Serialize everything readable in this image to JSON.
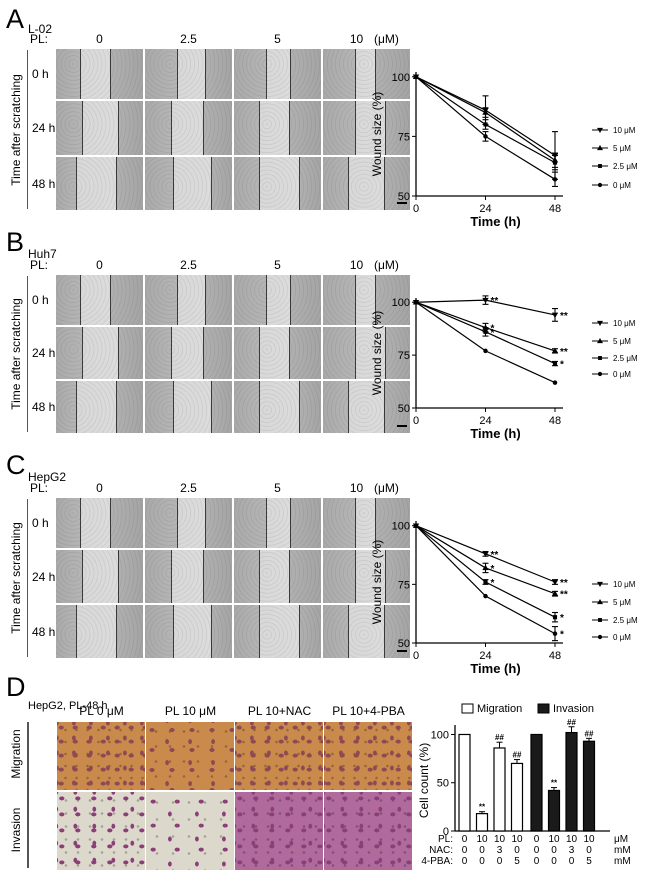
{
  "panels": [
    {
      "letter": "A",
      "cell": "L-02",
      "pl_label": "PL:",
      "unit": "(μM)",
      "concentrations": [
        "0",
        "2.5",
        "5",
        "10"
      ],
      "times": [
        "0 h",
        "24 h",
        "48 h"
      ],
      "side_label": "Time after scratching",
      "has_scale_bar": true
    },
    {
      "letter": "B",
      "cell": "Huh7",
      "pl_label": "PL:",
      "unit": "(μM)",
      "concentrations": [
        "0",
        "2.5",
        "5",
        "10"
      ],
      "times": [
        "0 h",
        "24 h",
        "48 h"
      ],
      "side_label": "Time after scratching",
      "has_scale_bar": true
    },
    {
      "letter": "C",
      "cell": "HepG2",
      "pl_label": "PL:",
      "unit": "(μM)",
      "concentrations": [
        "0",
        "2.5",
        "5",
        "10"
      ],
      "times": [
        "0 h",
        "24 h",
        "48 h"
      ],
      "side_label": "Time after scratching",
      "has_scale_bar": true
    }
  ],
  "panel_d": {
    "letter": "D",
    "title": "HepG2, PL-48 h",
    "columns": [
      "PL 0 μM",
      "PL 10 μM",
      "PL 10+NAC",
      "PL 10+4-PBA"
    ],
    "rows": [
      "Migration",
      "Invasion"
    ],
    "colors": {
      "migration_bg": "#c98a4c",
      "migration_cell": "#8e4a52",
      "invasion_bg": "#dcd9cc",
      "invasion_cell": "#8a3f78",
      "nac_invasion_bg": "#b06b9c"
    }
  },
  "chart_data": [
    {
      "type": "line",
      "panel": "A",
      "xlabel": "Time (h)",
      "ylabel": "Wound size (%)",
      "x": [
        0,
        24,
        48
      ],
      "xticks": [
        "0",
        "24",
        "48"
      ],
      "yticks": [
        "50",
        "75",
        "100"
      ],
      "ylim": [
        50,
        102
      ],
      "xlim": [
        0,
        48
      ],
      "legend_position": "right",
      "series": [
        {
          "name": "10 μM",
          "marker": "triangle-down",
          "values": [
            100,
            86,
            67
          ],
          "errors": [
            0,
            6,
            10
          ],
          "sig": [
            "",
            "",
            ""
          ]
        },
        {
          "name": "5 μM",
          "marker": "triangle-up",
          "values": [
            100,
            85,
            65
          ],
          "errors": [
            0,
            2,
            3
          ],
          "sig": [
            "",
            "",
            ""
          ]
        },
        {
          "name": "2.5 μM",
          "marker": "square",
          "values": [
            100,
            80,
            64
          ],
          "errors": [
            0,
            2,
            3
          ],
          "sig": [
            "",
            "",
            ""
          ]
        },
        {
          "name": "0 μM",
          "marker": "circle",
          "values": [
            100,
            75,
            57
          ],
          "errors": [
            0,
            2,
            3
          ],
          "sig": [
            "",
            "",
            ""
          ]
        }
      ]
    },
    {
      "type": "line",
      "panel": "B",
      "xlabel": "Time (h)",
      "ylabel": "Wound size (%)",
      "x": [
        0,
        24,
        48
      ],
      "xticks": [
        "0",
        "24",
        "48"
      ],
      "yticks": [
        "50",
        "75",
        "100"
      ],
      "ylim": [
        50,
        102
      ],
      "xlim": [
        0,
        48
      ],
      "legend_position": "right",
      "series": [
        {
          "name": "10 μM",
          "marker": "triangle-down",
          "values": [
            100,
            101,
            94
          ],
          "errors": [
            0,
            2,
            3
          ],
          "sig": [
            "",
            "**",
            "**"
          ]
        },
        {
          "name": "5 μM",
          "marker": "triangle-up",
          "values": [
            100,
            88,
            77
          ],
          "errors": [
            0,
            2,
            1
          ],
          "sig": [
            "",
            "*",
            "**"
          ]
        },
        {
          "name": "2.5 μM",
          "marker": "square",
          "values": [
            100,
            86,
            71
          ],
          "errors": [
            0,
            2,
            1
          ],
          "sig": [
            "",
            "*",
            "*"
          ]
        },
        {
          "name": "0 μM",
          "marker": "circle",
          "values": [
            100,
            77,
            62
          ],
          "errors": [
            0,
            0,
            0
          ],
          "sig": [
            "",
            "",
            ""
          ]
        }
      ]
    },
    {
      "type": "line",
      "panel": "C",
      "xlabel": "Time (h)",
      "ylabel": "Wound size (%)",
      "x": [
        0,
        24,
        48
      ],
      "xticks": [
        "0",
        "24",
        "48"
      ],
      "yticks": [
        "50",
        "75",
        "100"
      ],
      "ylim": [
        50,
        102
      ],
      "xlim": [
        0,
        48
      ],
      "legend_position": "right",
      "series": [
        {
          "name": "10 μM",
          "marker": "triangle-down",
          "values": [
            100,
            88,
            76
          ],
          "errors": [
            0,
            1,
            1
          ],
          "sig": [
            "",
            "**",
            "**"
          ]
        },
        {
          "name": "5 μM",
          "marker": "triangle-up",
          "values": [
            100,
            82,
            71
          ],
          "errors": [
            0,
            2,
            1
          ],
          "sig": [
            "",
            "*",
            "**"
          ]
        },
        {
          "name": "2.5 μM",
          "marker": "square",
          "values": [
            100,
            76,
            61
          ],
          "errors": [
            0,
            1,
            2
          ],
          "sig": [
            "",
            "*",
            "*"
          ]
        },
        {
          "name": "0 μM",
          "marker": "circle",
          "values": [
            100,
            70,
            54
          ],
          "errors": [
            0,
            0,
            3
          ],
          "sig": [
            "",
            "",
            "*"
          ]
        }
      ]
    },
    {
      "type": "bar",
      "panel": "D",
      "ylabel": "Cell count (%)",
      "yticks": [
        "0",
        "50",
        "100"
      ],
      "ylim": [
        0,
        115
      ],
      "legend_position": "top",
      "series": [
        {
          "name": "Migration",
          "color": "#ffffff",
          "values": [
            100,
            18,
            86,
            70
          ],
          "errors": [
            0,
            2,
            6,
            4
          ],
          "sig": [
            "",
            "**",
            "##",
            "##"
          ]
        },
        {
          "name": "Invasion",
          "color": "#1a1a1a",
          "values": [
            100,
            42,
            102,
            93
          ],
          "errors": [
            0,
            3,
            6,
            3
          ],
          "sig": [
            "",
            "**",
            "##",
            "##"
          ]
        }
      ],
      "condition_rows": [
        {
          "label": "PL:",
          "values": [
            "0",
            "10",
            "10",
            "10"
          ],
          "unit": "μM"
        },
        {
          "label": "NAC:",
          "values": [
            "0",
            "0",
            "3",
            "0"
          ],
          "unit": "mM"
        },
        {
          "label": "4-PBA:",
          "values": [
            "0",
            "0",
            "0",
            "5"
          ],
          "unit": "mM"
        }
      ]
    }
  ]
}
